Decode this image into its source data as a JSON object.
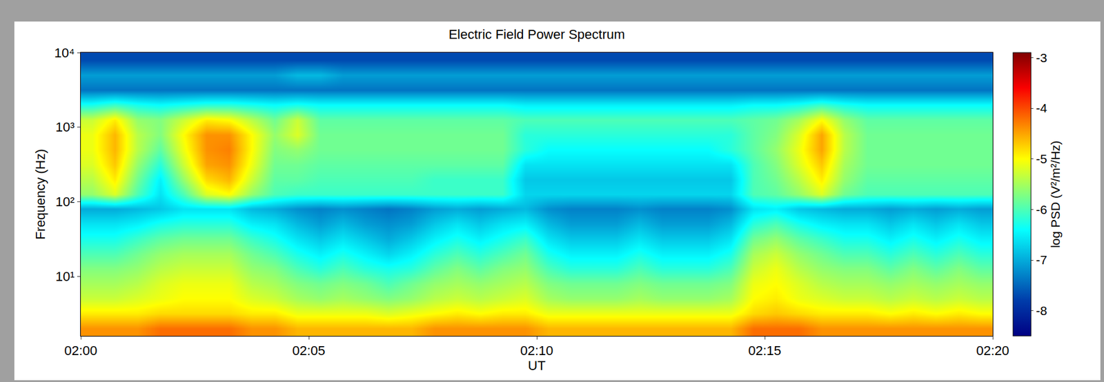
{
  "chart_data": {
    "type": "heatmap",
    "title": "Electric Field Power Spectrum",
    "xlabel": "UT",
    "ylabel": "Frequency (Hz)",
    "log": "y",
    "grid": false,
    "color": "Jet",
    "xlim": [
      120,
      140
    ],
    "ylim": [
      1.585,
      10000
    ],
    "xticks": [
      {
        "value": 120,
        "label": "02:00"
      },
      {
        "value": 125,
        "label": "02:05"
      },
      {
        "value": 130,
        "label": "02:10"
      },
      {
        "value": 135,
        "label": "02:15"
      },
      {
        "value": 140,
        "label": "02:20"
      }
    ],
    "yticks": [
      {
        "value": 10,
        "label": "10¹"
      },
      {
        "value": 100,
        "label": "10²"
      },
      {
        "value": 1000,
        "label": "10³"
      },
      {
        "value": 10000,
        "label": "10⁴"
      }
    ],
    "x_edges": [
      120,
      120.5,
      121,
      121.5,
      122,
      122.5,
      123,
      123.5,
      124,
      124.5,
      125,
      125.5,
      126,
      126.5,
      127,
      127.5,
      128,
      128.5,
      129,
      129.5,
      130,
      130.5,
      131,
      131.5,
      132,
      132.5,
      133,
      133.5,
      134,
      134.5,
      135,
      135.5,
      136,
      136.5,
      137,
      137.5,
      138,
      138.5,
      139,
      139.5,
      140
    ],
    "y_edges": [
      1.585,
      2.512,
      3.981,
      6.31,
      10,
      15.85,
      25.12,
      39.81,
      63.1,
      100,
      158.5,
      251.2,
      398.1,
      631,
      1000,
      1585,
      2512,
      3981,
      6310,
      10000
    ],
    "cells": [
      [
        -4.4,
        -4.4,
        -4.4,
        -4.2,
        -4.2,
        -4.2,
        -4.2,
        -4.4,
        -4.4,
        -4.6,
        -4.6,
        -4.6,
        -4.6,
        -4.6,
        -4.6,
        -4.4,
        -4.4,
        -4.4,
        -4.4,
        -4.4,
        -4.6,
        -4.6,
        -4.6,
        -4.6,
        -4.6,
        -4.6,
        -4.6,
        -4.6,
        -4.6,
        -4.2,
        -4.2,
        -4.2,
        -4.4,
        -4.4,
        -4.4,
        -4.4,
        -4.4,
        -4.4,
        -4.4,
        -4.4
      ],
      [
        -4.9,
        -4.9,
        -4.9,
        -4.8,
        -4.8,
        -4.8,
        -4.8,
        -4.9,
        -4.9,
        -5.1,
        -5.1,
        -5.1,
        -5.1,
        -5.2,
        -5.1,
        -5.0,
        -4.9,
        -5.0,
        -4.9,
        -4.9,
        -5.1,
        -5.1,
        -5.1,
        -5.1,
        -5.1,
        -5.1,
        -5.1,
        -5.1,
        -5.1,
        -4.8,
        -4.7,
        -4.8,
        -4.9,
        -4.9,
        -4.9,
        -5.0,
        -4.9,
        -5.0,
        -4.9,
        -5.0
      ],
      [
        -5.3,
        -5.3,
        -5.2,
        -5.1,
        -5.0,
        -5.0,
        -5.0,
        -5.2,
        -5.3,
        -5.5,
        -5.6,
        -5.5,
        -5.6,
        -5.7,
        -5.6,
        -5.4,
        -5.3,
        -5.4,
        -5.3,
        -5.2,
        -5.5,
        -5.6,
        -5.6,
        -5.6,
        -5.5,
        -5.6,
        -5.6,
        -5.6,
        -5.5,
        -5.0,
        -4.9,
        -5.1,
        -5.2,
        -5.3,
        -5.3,
        -5.4,
        -5.3,
        -5.4,
        -5.3,
        -5.4
      ],
      [
        -5.5,
        -5.5,
        -5.4,
        -5.2,
        -5.1,
        -5.1,
        -5.1,
        -5.4,
        -5.5,
        -5.7,
        -5.8,
        -5.7,
        -5.8,
        -6.0,
        -5.8,
        -5.6,
        -5.5,
        -5.6,
        -5.5,
        -5.4,
        -5.7,
        -5.8,
        -5.8,
        -5.8,
        -5.7,
        -5.8,
        -5.8,
        -5.8,
        -5.7,
        -5.1,
        -5.0,
        -5.2,
        -5.4,
        -5.5,
        -5.5,
        -5.6,
        -5.5,
        -5.6,
        -5.5,
        -5.6
      ],
      [
        -5.7,
        -5.7,
        -5.6,
        -5.4,
        -5.3,
        -5.3,
        -5.3,
        -5.6,
        -5.7,
        -6.0,
        -6.2,
        -6.0,
        -6.2,
        -6.3,
        -6.2,
        -5.9,
        -5.7,
        -5.9,
        -5.7,
        -5.6,
        -6.0,
        -6.2,
        -6.2,
        -6.2,
        -6.0,
        -6.2,
        -6.2,
        -6.2,
        -6.0,
        -5.3,
        -5.1,
        -5.4,
        -5.6,
        -5.7,
        -5.7,
        -5.9,
        -5.7,
        -5.9,
        -5.7,
        -5.9
      ],
      [
        -6.0,
        -6.0,
        -5.8,
        -5.6,
        -5.5,
        -5.5,
        -5.5,
        -5.8,
        -6.0,
        -6.3,
        -6.5,
        -6.3,
        -6.5,
        -6.7,
        -6.5,
        -6.2,
        -6.0,
        -6.2,
        -6.0,
        -5.8,
        -6.3,
        -6.5,
        -6.5,
        -6.5,
        -6.3,
        -6.5,
        -6.5,
        -6.5,
        -6.3,
        -5.5,
        -5.3,
        -5.6,
        -5.8,
        -6.0,
        -6.0,
        -6.2,
        -6.0,
        -6.2,
        -6.0,
        -6.2
      ],
      [
        -6.3,
        -6.3,
        -6.1,
        -5.9,
        -5.8,
        -5.8,
        -5.8,
        -6.1,
        -6.3,
        -6.6,
        -6.8,
        -6.6,
        -6.8,
        -7.0,
        -6.8,
        -6.5,
        -6.3,
        -6.5,
        -6.3,
        -6.1,
        -6.6,
        -6.8,
        -6.8,
        -6.8,
        -6.6,
        -6.8,
        -6.8,
        -6.8,
        -6.6,
        -5.8,
        -5.6,
        -5.9,
        -6.1,
        -6.3,
        -6.3,
        -6.5,
        -6.3,
        -6.5,
        -6.3,
        -6.5
      ],
      [
        -6.6,
        -6.6,
        -6.5,
        -6.3,
        -6.2,
        -6.2,
        -6.2,
        -6.5,
        -6.6,
        -6.9,
        -7.1,
        -6.9,
        -7.1,
        -7.2,
        -7.1,
        -6.8,
        -6.6,
        -6.8,
        -6.6,
        -6.5,
        -6.9,
        -7.1,
        -7.1,
        -7.1,
        -6.9,
        -7.1,
        -7.1,
        -7.1,
        -6.9,
        -6.2,
        -6.0,
        -6.3,
        -6.5,
        -6.6,
        -6.6,
        -6.8,
        -6.6,
        -6.8,
        -6.6,
        -6.8
      ],
      [
        -7.0,
        -7.0,
        -6.9,
        -6.8,
        -6.6,
        -6.6,
        -6.6,
        -6.9,
        -7.0,
        -7.2,
        -7.3,
        -7.2,
        -7.3,
        -7.4,
        -7.3,
        -7.1,
        -7.0,
        -7.1,
        -7.0,
        -6.9,
        -7.2,
        -7.3,
        -7.3,
        -7.3,
        -7.2,
        -7.3,
        -7.3,
        -7.3,
        -7.2,
        -6.6,
        -6.5,
        -6.8,
        -6.9,
        -7.0,
        -7.0,
        -7.1,
        -7.0,
        -7.1,
        -7.0,
        -7.1
      ],
      [
        -5.6,
        -5.2,
        -6.0,
        -6.6,
        -6.0,
        -5.2,
        -5.0,
        -5.6,
        -6.0,
        -6.1,
        -6.1,
        -6.1,
        -6.1,
        -6.1,
        -6.1,
        -6.1,
        -6.1,
        -6.1,
        -6.1,
        -6.7,
        -6.7,
        -6.7,
        -6.7,
        -6.7,
        -6.7,
        -6.7,
        -6.7,
        -6.7,
        -6.7,
        -6.0,
        -5.9,
        -5.6,
        -5.2,
        -5.8,
        -6.0,
        -6.0,
        -6.0,
        -6.0,
        -6.0,
        -6.0
      ],
      [
        -5.4,
        -4.9,
        -5.8,
        -6.5,
        -5.6,
        -4.8,
        -4.6,
        -5.3,
        -5.9,
        -5.9,
        -6.0,
        -6.0,
        -6.0,
        -6.0,
        -6.0,
        -6.1,
        -6.1,
        -6.1,
        -6.1,
        -6.8,
        -6.8,
        -6.8,
        -6.8,
        -6.8,
        -6.8,
        -6.8,
        -6.8,
        -6.8,
        -6.8,
        -6.0,
        -5.8,
        -5.4,
        -4.9,
        -5.6,
        -5.9,
        -5.9,
        -5.9,
        -5.9,
        -5.9,
        -5.9
      ],
      [
        -5.2,
        -4.7,
        -5.6,
        -6.2,
        -5.3,
        -4.5,
        -4.4,
        -5.1,
        -5.8,
        -5.8,
        -5.9,
        -5.9,
        -5.9,
        -5.9,
        -5.9,
        -5.9,
        -5.9,
        -5.9,
        -5.9,
        -6.6,
        -6.6,
        -6.6,
        -6.6,
        -6.6,
        -6.6,
        -6.6,
        -6.6,
        -6.6,
        -6.6,
        -6.0,
        -5.7,
        -5.2,
        -4.7,
        -5.5,
        -5.8,
        -5.8,
        -5.8,
        -5.8,
        -5.8,
        -5.8
      ],
      [
        -5.1,
        -4.6,
        -5.4,
        -5.9,
        -5.1,
        -4.4,
        -4.3,
        -5.0,
        -5.7,
        -5.6,
        -5.8,
        -5.8,
        -5.8,
        -5.8,
        -5.8,
        -5.8,
        -5.8,
        -5.8,
        -5.8,
        -6.2,
        -6.4,
        -6.4,
        -6.4,
        -6.4,
        -6.4,
        -6.4,
        -6.4,
        -6.4,
        -6.2,
        -5.9,
        -5.6,
        -5.1,
        -4.5,
        -5.4,
        -5.8,
        -5.8,
        -5.8,
        -5.8,
        -5.8,
        -5.8
      ],
      [
        -5.1,
        -4.6,
        -5.4,
        -5.7,
        -5.0,
        -4.4,
        -4.4,
        -5.0,
        -5.6,
        -5.2,
        -5.8,
        -5.8,
        -5.8,
        -5.8,
        -5.8,
        -5.8,
        -5.8,
        -5.8,
        -5.8,
        -6.2,
        -6.2,
        -6.2,
        -6.2,
        -6.2,
        -6.2,
        -6.2,
        -6.2,
        -6.2,
        -6.2,
        -5.9,
        -5.7,
        -5.2,
        -4.5,
        -5.4,
        -5.8,
        -5.8,
        -5.8,
        -5.8,
        -5.8,
        -5.8
      ],
      [
        -5.3,
        -4.9,
        -5.6,
        -5.7,
        -5.3,
        -4.9,
        -5.0,
        -5.4,
        -5.8,
        -5.3,
        -5.9,
        -5.9,
        -5.9,
        -5.9,
        -5.9,
        -5.9,
        -5.9,
        -5.9,
        -5.9,
        -6.0,
        -6.0,
        -6.0,
        -6.0,
        -6.0,
        -6.0,
        -6.0,
        -6.0,
        -6.0,
        -6.0,
        -5.9,
        -5.8,
        -5.5,
        -5.0,
        -5.6,
        -5.9,
        -5.9,
        -5.9,
        -5.9,
        -5.9,
        -5.9
      ],
      [
        -6.3,
        -6.1,
        -6.3,
        -6.4,
        -6.3,
        -6.2,
        -6.2,
        -6.3,
        -6.4,
        -6.3,
        -6.4,
        -6.4,
        -6.4,
        -6.4,
        -6.4,
        -6.4,
        -6.4,
        -6.4,
        -6.4,
        -6.5,
        -6.5,
        -6.5,
        -6.5,
        -6.5,
        -6.5,
        -6.5,
        -6.5,
        -6.5,
        -6.5,
        -6.4,
        -6.4,
        -6.3,
        -6.1,
        -6.3,
        -6.4,
        -6.4,
        -6.4,
        -6.4,
        -6.4,
        -6.4
      ],
      [
        -7.4,
        -7.4,
        -7.4,
        -7.4,
        -7.4,
        -7.4,
        -7.4,
        -7.4,
        -7.4,
        -7.4,
        -7.4,
        -7.4,
        -7.4,
        -7.4,
        -7.4,
        -7.4,
        -7.4,
        -7.4,
        -7.4,
        -7.4,
        -7.4,
        -7.4,
        -7.4,
        -7.4,
        -7.4,
        -7.4,
        -7.4,
        -7.4,
        -7.4,
        -7.4,
        -7.4,
        -7.4,
        -7.4,
        -7.4,
        -7.4,
        -7.4,
        -7.4,
        -7.4,
        -7.4,
        -7.4
      ],
      [
        -7.1,
        -7.1,
        -7.1,
        -7.1,
        -7.1,
        -7.1,
        -7.1,
        -7.1,
        -7.1,
        -6.9,
        -6.9,
        -7.1,
        -7.1,
        -7.1,
        -7.1,
        -7.1,
        -7.1,
        -7.1,
        -7.1,
        -7.1,
        -7.1,
        -7.1,
        -7.1,
        -7.1,
        -7.1,
        -7.1,
        -7.1,
        -7.1,
        -7.1,
        -7.1,
        -7.1,
        -7.1,
        -7.1,
        -7.1,
        -7.1,
        -7.1,
        -7.1,
        -7.1,
        -7.1,
        -7.1
      ],
      [
        -7.7,
        -7.7,
        -7.7,
        -7.7,
        -7.7,
        -7.7,
        -7.7,
        -7.7,
        -7.7,
        -7.7,
        -7.7,
        -7.7,
        -7.7,
        -7.7,
        -7.7,
        -7.7,
        -7.7,
        -7.7,
        -7.7,
        -7.7,
        -7.7,
        -7.7,
        -7.7,
        -7.7,
        -7.7,
        -7.7,
        -7.7,
        -7.7,
        -7.7,
        -7.7,
        -7.7,
        -7.7,
        -7.7,
        -7.7,
        -7.7,
        -7.7,
        -7.7,
        -7.7,
        -7.7,
        -7.7
      ]
    ],
    "colorbar": {
      "title": "log PSD (V²/m²/Hz)",
      "range": [
        -8.5,
        -2.9
      ],
      "ticks": [
        -8,
        -7,
        -6,
        -5,
        -4,
        -3
      ]
    }
  }
}
